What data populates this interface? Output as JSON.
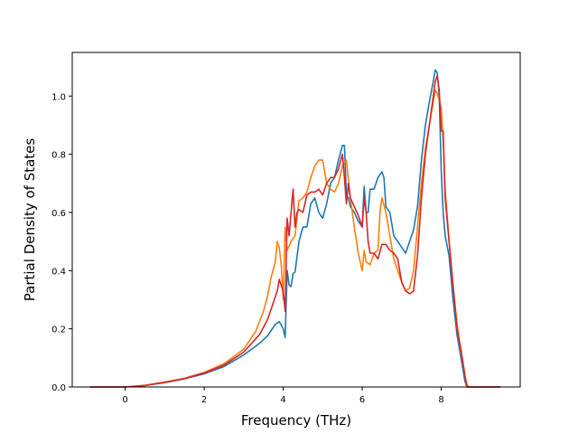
{
  "chart_data": {
    "type": "line",
    "title": "",
    "xlabel": "Frequency (THz)",
    "ylabel": "Partial Density of States",
    "xlim": [
      -1.34,
      10.0
    ],
    "ylim": [
      0.0,
      1.15
    ],
    "xticks": [
      "0",
      "2",
      "4",
      "6",
      "8"
    ],
    "xtick_values": [
      0,
      2,
      4,
      6,
      8
    ],
    "yticks": [
      "0.0",
      "0.2",
      "0.4",
      "0.6",
      "0.8",
      "1.0"
    ],
    "ytick_values": [
      0.0,
      0.2,
      0.4,
      0.6,
      0.8,
      1.0
    ],
    "grid": false,
    "legend": "none",
    "series": [
      {
        "color": "#1f77b4",
        "x": [
          -0.9,
          0.0,
          0.5,
          1.0,
          1.5,
          2.0,
          2.5,
          3.0,
          3.4,
          3.6,
          3.7,
          3.8,
          3.85,
          3.9,
          4.0,
          4.05,
          4.1,
          4.15,
          4.2,
          4.25,
          4.3,
          4.4,
          4.5,
          4.6,
          4.7,
          4.8,
          4.9,
          5.0,
          5.1,
          5.2,
          5.3,
          5.4,
          5.5,
          5.55,
          5.6,
          5.65,
          5.7,
          5.8,
          5.9,
          6.0,
          6.05,
          6.1,
          6.15,
          6.2,
          6.3,
          6.4,
          6.5,
          6.55,
          6.6,
          6.7,
          6.8,
          6.9,
          7.0,
          7.1,
          7.2,
          7.3,
          7.4,
          7.5,
          7.6,
          7.7,
          7.8,
          7.85,
          7.9,
          7.95,
          8.0,
          8.05,
          8.1,
          8.2,
          8.3,
          8.4,
          8.5,
          8.6,
          8.65,
          8.7,
          9.0,
          9.5
        ],
        "y": [
          0.0,
          0.0,
          0.005,
          0.015,
          0.028,
          0.045,
          0.07,
          0.11,
          0.15,
          0.175,
          0.195,
          0.215,
          0.22,
          0.225,
          0.2,
          0.17,
          0.4,
          0.35,
          0.345,
          0.39,
          0.395,
          0.5,
          0.55,
          0.55,
          0.63,
          0.65,
          0.6,
          0.58,
          0.63,
          0.7,
          0.72,
          0.78,
          0.83,
          0.83,
          0.66,
          0.65,
          0.62,
          0.6,
          0.57,
          0.55,
          0.69,
          0.6,
          0.6,
          0.68,
          0.68,
          0.72,
          0.74,
          0.72,
          0.62,
          0.6,
          0.52,
          0.5,
          0.48,
          0.46,
          0.5,
          0.54,
          0.62,
          0.78,
          0.9,
          0.98,
          1.05,
          1.09,
          1.08,
          1.0,
          0.75,
          0.6,
          0.52,
          0.45,
          0.3,
          0.18,
          0.1,
          0.02,
          0.0,
          0.0,
          0.0,
          0.0
        ]
      },
      {
        "color": "#ff7f0e",
        "x": [
          -0.9,
          0.0,
          0.5,
          1.0,
          1.5,
          2.0,
          2.5,
          3.0,
          3.3,
          3.5,
          3.6,
          3.7,
          3.8,
          3.85,
          3.9,
          3.95,
          4.0,
          4.05,
          4.1,
          4.2,
          4.3,
          4.4,
          4.5,
          4.6,
          4.7,
          4.8,
          4.9,
          5.0,
          5.1,
          5.2,
          5.3,
          5.4,
          5.5,
          5.6,
          5.7,
          5.8,
          5.9,
          6.0,
          6.05,
          6.1,
          6.2,
          6.3,
          6.4,
          6.45,
          6.5,
          6.6,
          6.7,
          6.8,
          6.9,
          7.0,
          7.1,
          7.2,
          7.3,
          7.4,
          7.5,
          7.6,
          7.7,
          7.8,
          7.85,
          7.9,
          8.0,
          8.05,
          8.1,
          8.2,
          8.3,
          8.4,
          8.5,
          8.6,
          8.65,
          8.7,
          9.0,
          9.5
        ],
        "y": [
          0.0,
          0.0,
          0.006,
          0.017,
          0.03,
          0.05,
          0.08,
          0.13,
          0.19,
          0.26,
          0.31,
          0.38,
          0.43,
          0.5,
          0.48,
          0.42,
          0.3,
          0.55,
          0.47,
          0.5,
          0.52,
          0.64,
          0.65,
          0.67,
          0.72,
          0.76,
          0.78,
          0.78,
          0.7,
          0.68,
          0.67,
          0.7,
          0.76,
          0.78,
          0.65,
          0.55,
          0.46,
          0.4,
          0.47,
          0.43,
          0.42,
          0.46,
          0.47,
          0.6,
          0.65,
          0.6,
          0.52,
          0.44,
          0.4,
          0.36,
          0.33,
          0.34,
          0.4,
          0.55,
          0.7,
          0.82,
          0.9,
          0.98,
          1.02,
          1.01,
          0.96,
          0.85,
          0.68,
          0.5,
          0.35,
          0.22,
          0.12,
          0.04,
          0.01,
          0.0,
          0.0,
          0.0
        ]
      },
      {
        "color": "#d62728",
        "x": [
          -0.9,
          0.0,
          0.5,
          1.0,
          1.5,
          2.0,
          2.5,
          3.0,
          3.4,
          3.6,
          3.7,
          3.8,
          3.85,
          3.9,
          4.0,
          4.05,
          4.1,
          4.15,
          4.2,
          4.25,
          4.3,
          4.35,
          4.4,
          4.5,
          4.6,
          4.7,
          4.8,
          4.9,
          5.0,
          5.1,
          5.2,
          5.3,
          5.4,
          5.5,
          5.55,
          5.6,
          5.65,
          5.7,
          5.8,
          5.9,
          6.0,
          6.05,
          6.1,
          6.15,
          6.2,
          6.3,
          6.4,
          6.5,
          6.6,
          6.7,
          6.8,
          6.9,
          7.0,
          7.1,
          7.2,
          7.3,
          7.4,
          7.5,
          7.6,
          7.7,
          7.8,
          7.85,
          7.9,
          7.95,
          8.0,
          8.05,
          8.1,
          8.2,
          8.3,
          8.4,
          8.5,
          8.6,
          8.65,
          8.7,
          9.0,
          9.5
        ],
        "y": [
          0.0,
          0.0,
          0.005,
          0.016,
          0.029,
          0.048,
          0.075,
          0.12,
          0.18,
          0.23,
          0.27,
          0.31,
          0.33,
          0.37,
          0.33,
          0.26,
          0.58,
          0.52,
          0.6,
          0.68,
          0.55,
          0.6,
          0.61,
          0.6,
          0.66,
          0.67,
          0.67,
          0.68,
          0.66,
          0.7,
          0.72,
          0.72,
          0.75,
          0.8,
          0.72,
          0.63,
          0.7,
          0.65,
          0.62,
          0.59,
          0.55,
          0.65,
          0.6,
          0.5,
          0.46,
          0.46,
          0.44,
          0.49,
          0.49,
          0.47,
          0.46,
          0.44,
          0.36,
          0.33,
          0.32,
          0.33,
          0.45,
          0.65,
          0.8,
          0.9,
          1.0,
          1.05,
          1.07,
          1.02,
          0.88,
          0.88,
          0.65,
          0.5,
          0.35,
          0.2,
          0.13,
          0.04,
          0.0,
          0.0,
          0.0,
          0.0
        ]
      }
    ]
  }
}
